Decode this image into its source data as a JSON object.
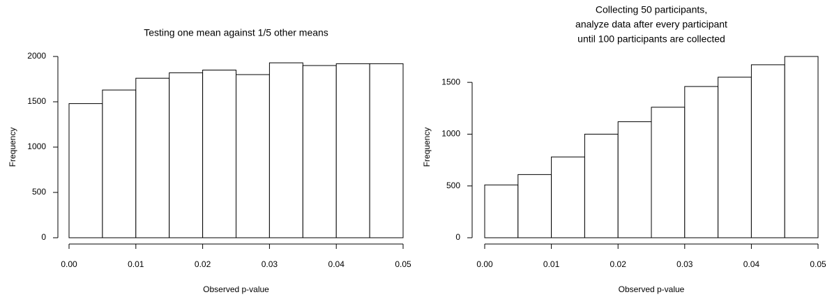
{
  "chart_data": [
    {
      "type": "histogram",
      "title": [
        "Testing one mean against 1/5 other means"
      ],
      "xlabel": "Observed p-value",
      "ylabel": "Frequency",
      "bins": [
        0,
        0.005,
        0.01,
        0.015,
        0.02,
        0.025,
        0.03,
        0.035,
        0.04,
        0.045,
        0.05
      ],
      "values": [
        1480,
        1630,
        1760,
        1820,
        1850,
        1800,
        1930,
        1900,
        1920,
        1920
      ],
      "color": "#ffffff",
      "xlim": [
        0,
        0.05
      ],
      "xticks": [
        {
          "value": 0,
          "label": "0.00"
        },
        {
          "value": 0.01,
          "label": "0.01"
        },
        {
          "value": 0.02,
          "label": "0.02"
        },
        {
          "value": 0.03,
          "label": "0.03"
        },
        {
          "value": 0.04,
          "label": "0.04"
        },
        {
          "value": 0.05,
          "label": "0.05"
        }
      ],
      "ylim": [
        0,
        2000
      ],
      "yticks": [
        0,
        500,
        1000,
        1500,
        2000
      ]
    },
    {
      "type": "histogram",
      "title": [
        "Collecting 50 participants,",
        "analyze data after every participant",
        "until 100 participants are collected"
      ],
      "xlabel": "Observed p-value",
      "ylabel": "Frequency",
      "bins": [
        0,
        0.005,
        0.01,
        0.015,
        0.02,
        0.025,
        0.03,
        0.035,
        0.04,
        0.045,
        0.05
      ],
      "values": [
        510,
        610,
        780,
        1000,
        1120,
        1260,
        1460,
        1550,
        1670,
        1750
      ],
      "color": "#ffffff",
      "xlim": [
        0,
        0.05
      ],
      "xticks": [
        {
          "value": 0,
          "label": "0.00"
        },
        {
          "value": 0.01,
          "label": "0.01"
        },
        {
          "value": 0.02,
          "label": "0.02"
        },
        {
          "value": 0.03,
          "label": "0.03"
        },
        {
          "value": 0.04,
          "label": "0.04"
        },
        {
          "value": 0.05,
          "label": "0.05"
        }
      ],
      "ylim": [
        0,
        1750
      ],
      "yticks": [
        0,
        500,
        1000,
        1500
      ]
    }
  ]
}
